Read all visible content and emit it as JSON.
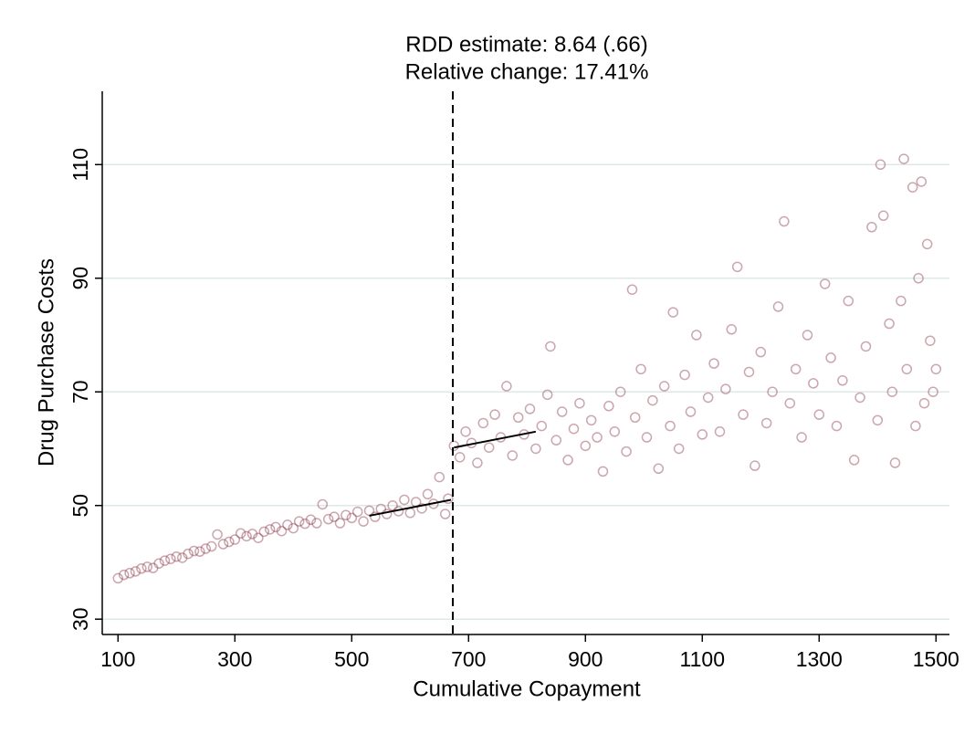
{
  "chart_data": {
    "type": "scatter",
    "title": "RDD estimate: 8.64 (.66)",
    "subtitle": "Relative change: 17.41%",
    "xlabel": "Cumulative Copayment",
    "ylabel": "Drug Purchase Costs",
    "xlim": [
      73,
      1523
    ],
    "ylim": [
      27.3,
      122.9
    ],
    "xticks": [
      100,
      300,
      500,
      700,
      900,
      1100,
      1300,
      1500
    ],
    "yticks": [
      30,
      50,
      70,
      90,
      110
    ],
    "grid": true,
    "color": "#8c3a4c",
    "cutoff": 673,
    "x": [
      100,
      110,
      120,
      130,
      140,
      150,
      160,
      170,
      180,
      190,
      200,
      210,
      220,
      230,
      240,
      250,
      260,
      270,
      280,
      290,
      300,
      310,
      320,
      330,
      340,
      350,
      360,
      370,
      380,
      390,
      400,
      410,
      420,
      430,
      440,
      450,
      460,
      470,
      480,
      490,
      500,
      510,
      520,
      530,
      540,
      550,
      560,
      570,
      580,
      590,
      600,
      610,
      620,
      630,
      640,
      650,
      660,
      665,
      675,
      685,
      695,
      705,
      715,
      725,
      735,
      745,
      755,
      765,
      775,
      785,
      795,
      805,
      815,
      825,
      835,
      840,
      850,
      860,
      870,
      880,
      890,
      900,
      910,
      920,
      930,
      940,
      950,
      960,
      970,
      980,
      985,
      995,
      1005,
      1015,
      1025,
      1035,
      1045,
      1050,
      1060,
      1070,
      1080,
      1090,
      1100,
      1110,
      1120,
      1130,
      1140,
      1150,
      1160,
      1170,
      1180,
      1190,
      1200,
      1210,
      1220,
      1230,
      1240,
      1250,
      1260,
      1270,
      1280,
      1290,
      1300,
      1310,
      1320,
      1330,
      1340,
      1350,
      1360,
      1370,
      1380,
      1390,
      1400,
      1405,
      1410,
      1420,
      1425,
      1430,
      1440,
      1445,
      1450,
      1460,
      1465,
      1470,
      1475,
      1480,
      1485,
      1490,
      1495,
      1500
    ],
    "y": [
      37.2,
      37.8,
      38.1,
      38.4,
      38.9,
      39.2,
      39.0,
      39.8,
      40.3,
      40.6,
      41.0,
      40.8,
      41.5,
      42.0,
      41.9,
      42.4,
      42.8,
      44.9,
      43.2,
      43.6,
      44.0,
      45.1,
      44.6,
      45.0,
      44.3,
      45.4,
      45.8,
      46.2,
      45.5,
      46.6,
      46.0,
      47.2,
      46.8,
      47.5,
      46.9,
      50.2,
      47.6,
      48.0,
      46.9,
      48.3,
      47.8,
      48.9,
      47.2,
      49.1,
      48.0,
      49.4,
      48.5,
      50.0,
      49.0,
      51.0,
      48.7,
      50.6,
      49.5,
      52.0,
      50.3,
      55.0,
      48.5,
      51.2,
      60.5,
      58.5,
      63.0,
      61.0,
      57.5,
      64.5,
      60.2,
      66.0,
      62.0,
      71.0,
      58.8,
      65.5,
      62.5,
      67.0,
      60.0,
      64.0,
      69.5,
      78.0,
      61.5,
      66.5,
      58.0,
      63.5,
      68.0,
      60.5,
      65.0,
      62.0,
      56.0,
      67.5,
      63.0,
      70.0,
      59.5,
      88.0,
      65.5,
      74.0,
      62.0,
      68.5,
      56.5,
      71.0,
      64.0,
      84.0,
      60.0,
      73.0,
      66.5,
      80.0,
      62.5,
      69.0,
      75.0,
      63.0,
      70.5,
      81.0,
      92.0,
      66.0,
      73.5,
      57.0,
      77.0,
      64.5,
      70.0,
      85.0,
      100.0,
      68.0,
      74.0,
      62.0,
      80.0,
      71.5,
      66.0,
      89.0,
      76.0,
      64.0,
      72.0,
      86.0,
      58.0,
      69.0,
      78.0,
      99.0,
      65.0,
      110.0,
      101.0,
      82.0,
      70.0,
      57.5,
      86.0,
      111.0,
      74.0,
      106.0,
      64.0,
      90.0,
      107.0,
      68.0,
      96.0,
      79.0,
      70.0,
      74.0
    ],
    "fit_lines": [
      {
        "x": [
          530,
          670
        ],
        "y": [
          48.2,
          51.0
        ]
      },
      {
        "x": [
          675,
          815
        ],
        "y": [
          60.2,
          63.0
        ]
      }
    ]
  }
}
